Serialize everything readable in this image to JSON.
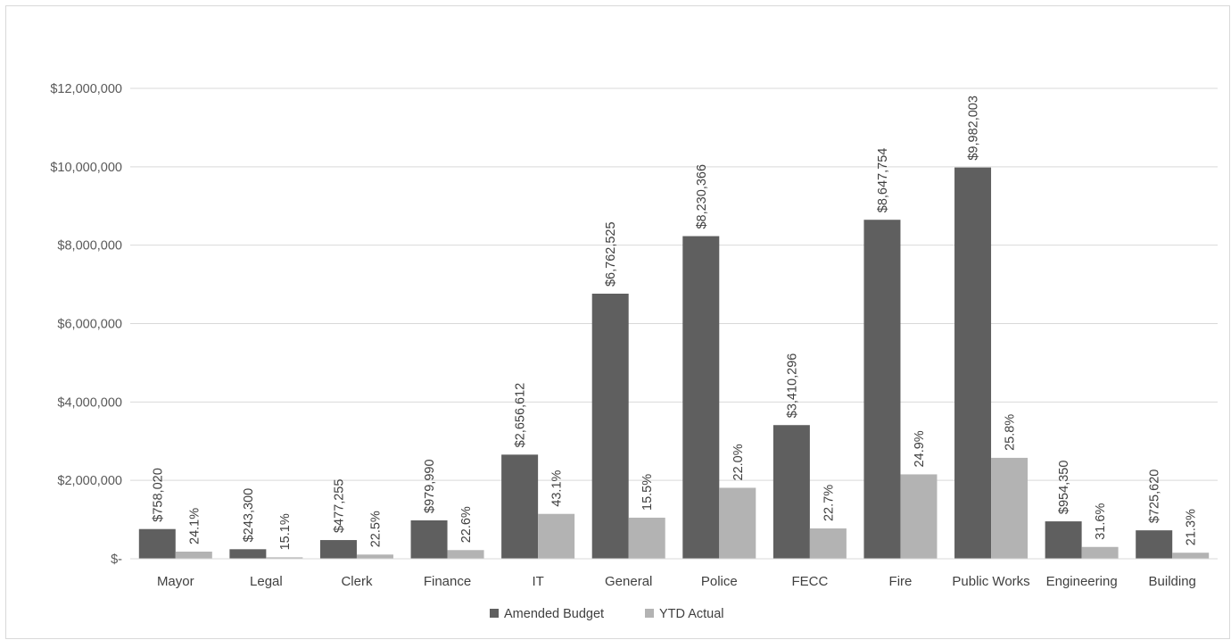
{
  "chart_data": {
    "type": "bar",
    "categories": [
      "Mayor",
      "Legal",
      "Clerk",
      "Finance",
      "IT",
      "General",
      "Police",
      "FECC",
      "Fire",
      "Public Works",
      "Engineering",
      "Building"
    ],
    "series": [
      {
        "name": "Amended Budget",
        "color": "#5f5f5f",
        "values": [
          758020,
          243300,
          477255,
          979990,
          2656612,
          6762525,
          8230366,
          3410296,
          8647754,
          9982003,
          954350,
          725620
        ],
        "labels": [
          "$758,020",
          "$243,300",
          "$477,255",
          "$979,990",
          "$2,656,612",
          "$6,762,525",
          "$8,230,366",
          "$3,410,296",
          "$8,647,754",
          "$9,982,003",
          "$954,350",
          "$725,620"
        ]
      },
      {
        "name": "YTD Actual",
        "color": "#b3b3b3",
        "values": [
          182682,
          36738,
          107382,
          221478,
          1145000,
          1048191,
          1810681,
          774137,
          2153291,
          2575357,
          301575,
          154557
        ],
        "labels": [
          "24.1%",
          "15.1%",
          "22.5%",
          "22.6%",
          "43.1%",
          "15.5%",
          "22.0%",
          "22.7%",
          "24.9%",
          "25.8%",
          "31.6%",
          "21.3%"
        ]
      }
    ],
    "yaxis": {
      "min": 0,
      "max": 12000000,
      "ticks": [
        0,
        2000000,
        4000000,
        6000000,
        8000000,
        10000000,
        12000000
      ],
      "tick_labels": [
        "$-",
        "$2,000,000",
        "$4,000,000",
        "$6,000,000",
        "$8,000,000",
        "$10,000,000",
        "$12,000,000"
      ]
    },
    "title": "",
    "xlabel": "",
    "ylabel": "",
    "grid": true,
    "legend_position": "bottom"
  }
}
